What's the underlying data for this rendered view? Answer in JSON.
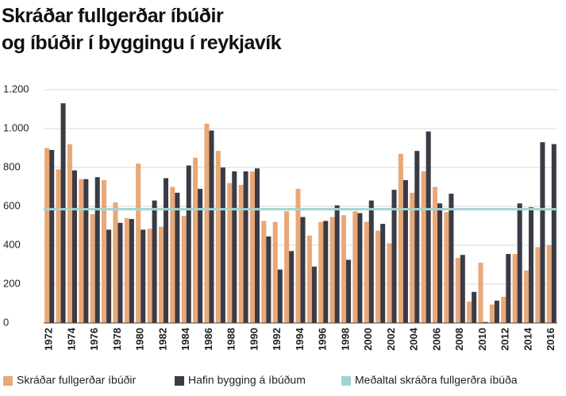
{
  "chart_data": {
    "type": "bar",
    "title": [
      "Skráðar fullgerðar íbúðir",
      "og íbúðir í byggingu í reykjavík"
    ],
    "categories": [
      "1972",
      null,
      "1974",
      null,
      "1976",
      null,
      "1978",
      null,
      "1980",
      null,
      "1982",
      null,
      "1984",
      null,
      "1986",
      null,
      "1988",
      null,
      "1990",
      null,
      "1992",
      null,
      "1994",
      null,
      "1996",
      null,
      "1998",
      null,
      "2000",
      null,
      "2002",
      null,
      "2004",
      null,
      "2006",
      null,
      "2008",
      null,
      "2010",
      null,
      "2012",
      null,
      "2014",
      null,
      "2016"
    ],
    "series": [
      {
        "name": "Skráðar fullgerðar íbúðir",
        "color": "#e9a877",
        "values": [
          900,
          790,
          920,
          740,
          560,
          735,
          620,
          540,
          820,
          485,
          495,
          700,
          550,
          850,
          1025,
          885,
          720,
          710,
          780,
          525,
          520,
          575,
          690,
          450,
          520,
          545,
          555,
          575,
          520,
          475,
          410,
          870,
          670,
          780,
          700,
          570,
          335,
          110,
          310,
          95,
          135,
          355,
          270,
          390,
          400
        ]
      },
      {
        "name": "Hafin bygging á íbúðum",
        "color": "#3b3b45",
        "values": [
          890,
          1130,
          785,
          740,
          750,
          480,
          515,
          535,
          480,
          630,
          745,
          670,
          810,
          690,
          990,
          800,
          780,
          780,
          795,
          445,
          275,
          370,
          545,
          290,
          525,
          605,
          325,
          565,
          630,
          510,
          685,
          735,
          885,
          985,
          615,
          665,
          350,
          160,
          5,
          115,
          355,
          615,
          595,
          930,
          920
        ]
      }
    ],
    "average": {
      "name": "Meðaltal skráðra fullgerðra íbúða",
      "color": "#a3d3d3",
      "value": 585
    },
    "ylim": [
      0,
      1200
    ],
    "yticks": [
      0,
      200,
      400,
      600,
      800,
      {
        "value": 1000,
        "label": "1.000"
      },
      {
        "value": 1200,
        "label": "1.200"
      }
    ],
    "grid": true
  }
}
